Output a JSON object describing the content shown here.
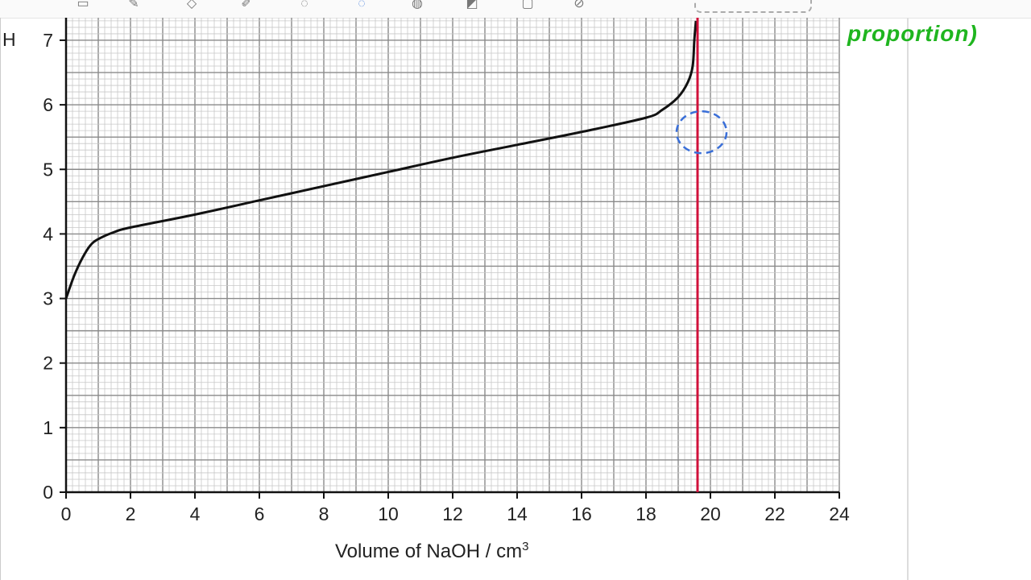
{
  "toolbar": {
    "icons": [
      "shapes-icon",
      "pen-icon",
      "highlighter-icon",
      "eraser-icon",
      "lasso-icon",
      "lasso-select-icon",
      "image-icon",
      "insert-picture-icon",
      "text-box-icon",
      "ruler-icon"
    ]
  },
  "annotation": {
    "text": "proportion)",
    "color": "#1fb51f"
  },
  "chart_data": {
    "type": "line",
    "title": "",
    "xlabel": "Volume of NaOH / cm",
    "xlabel_superscript": "3",
    "ylabel": "H",
    "xlim": [
      0,
      24
    ],
    "ylim": [
      0,
      7
    ],
    "xticks": [
      "0",
      "2",
      "4",
      "6",
      "8",
      "10",
      "12",
      "14",
      "16",
      "18",
      "20",
      "22",
      "24"
    ],
    "yticks": [
      "0",
      "1",
      "2",
      "3",
      "4",
      "5",
      "6",
      "7"
    ],
    "grid": true,
    "series": [
      {
        "color": "#111111",
        "x": [
          0,
          0.25,
          0.5,
          0.75,
          1,
          1.5,
          2,
          4,
          6,
          8,
          10,
          12,
          14,
          16,
          18,
          18.5,
          19,
          19.3,
          19.45,
          19.5,
          19.55
        ],
        "y": [
          3.0,
          3.35,
          3.62,
          3.82,
          3.92,
          4.03,
          4.1,
          4.3,
          4.52,
          4.74,
          4.96,
          5.18,
          5.38,
          5.58,
          5.8,
          5.92,
          6.12,
          6.35,
          6.6,
          7.0,
          7.3
        ]
      }
    ],
    "vertical_line": {
      "x": 19.6,
      "color": "#d0103a"
    },
    "circle_marker": {
      "x": 19.8,
      "y": 5.6,
      "color": "#3a6fd8",
      "style": "dashed"
    }
  }
}
